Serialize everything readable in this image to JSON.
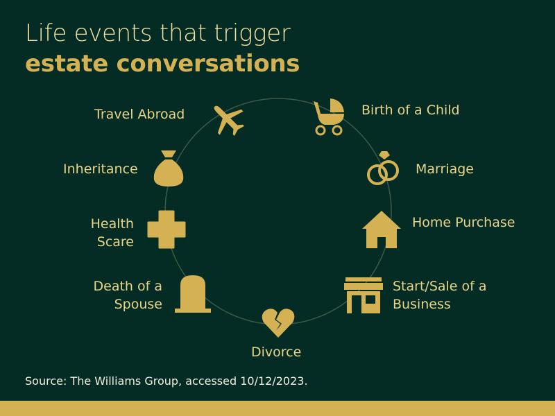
{
  "title": {
    "line1": "Life events that trigger",
    "line2": "estate conversations"
  },
  "events": [
    {
      "label": "Birth of a Child",
      "icon": "baby-carriage-icon"
    },
    {
      "label": "Marriage",
      "icon": "rings-icon"
    },
    {
      "label": "Home Purchase",
      "icon": "house-icon"
    },
    {
      "label": "Start/Sale of a Business",
      "icon": "storefront-icon"
    },
    {
      "label": "Divorce",
      "icon": "broken-heart-icon"
    },
    {
      "label": "Death of a Spouse",
      "icon": "tombstone-icon"
    },
    {
      "label": "Health Scare",
      "icon": "medical-cross-icon"
    },
    {
      "label": "Inheritance",
      "icon": "money-bag-icon"
    },
    {
      "label": "Travel Abroad",
      "icon": "airplane-icon"
    }
  ],
  "source": "Source: The Williams Group, accessed 10/12/2023.",
  "colors": {
    "background": "#042c25",
    "gold": "#d4b254",
    "label": "#e8d58c"
  }
}
